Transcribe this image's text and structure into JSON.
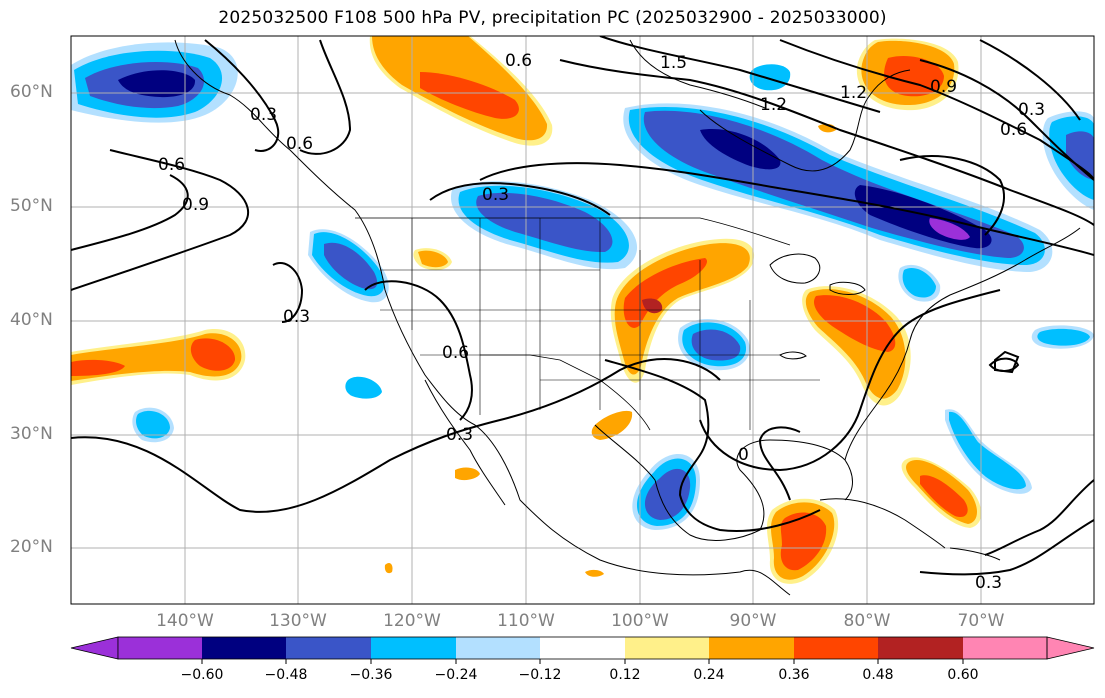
{
  "title": "2025032500 F108 500 hPa PV, precipitation PC (2025032900 - 2025033000)",
  "map": {
    "lat_labels": [
      "60°N",
      "50°N",
      "40°N",
      "30°N",
      "20°N"
    ],
    "lon_labels": [
      "140°W",
      "130°W",
      "120°W",
      "110°W",
      "100°W",
      "90°W",
      "80°W",
      "70°W"
    ],
    "contour_labels": [
      "0.6",
      "1.5",
      "1.2",
      "1.2",
      "0.9",
      "0.6",
      "0.3",
      "0.3",
      "0.6",
      "0.9",
      "0.3",
      "0.3",
      "0.6",
      "0.3",
      "0",
      "0.3",
      "0.6"
    ]
  },
  "colorbar": {
    "ticks": [
      "−0.60",
      "−0.48",
      "−0.36",
      "−0.24",
      "−0.12",
      "0.12",
      "0.24",
      "0.36",
      "0.48",
      "0.60"
    ],
    "colors": [
      "#9b30d9",
      "#000080",
      "#3a55c8",
      "#00bfff",
      "#b3e0ff",
      "#ffffff",
      "#fff08a",
      "#ffa500",
      "#ff4500",
      "#b22222",
      "#ff85b3"
    ]
  }
}
